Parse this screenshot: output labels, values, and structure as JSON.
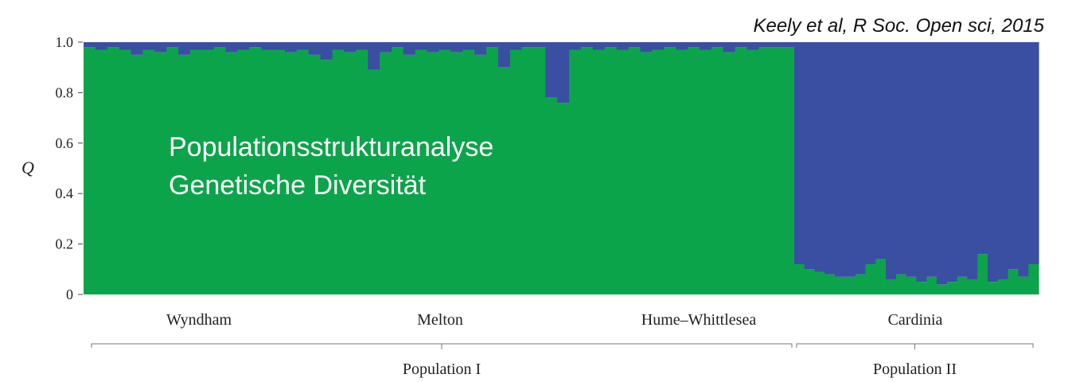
{
  "chart_data": {
    "type": "bar",
    "stacked": true,
    "citation": "Keely et al, R Soc. Open sci, 2015",
    "annotations": [
      "Populationsstrukturanalyse",
      "Genetische Diversität"
    ],
    "ylabel": "Q",
    "ylim": [
      0,
      1
    ],
    "yticks": [
      0,
      0.2,
      0.4,
      0.6,
      0.8,
      {
        "value": 1,
        "label": "1.0"
      }
    ],
    "groups": [
      "Wyndham",
      "Melton",
      "Hume–Whittlesea",
      "Cardinia"
    ],
    "populations": [
      "Population I",
      "Population II"
    ],
    "series": [
      {
        "color": "#0ca44a",
        "values": [
          0.98,
          0.97,
          0.98,
          0.97,
          0.95,
          0.97,
          0.96,
          0.98,
          0.95,
          0.97,
          0.97,
          0.98,
          0.96,
          0.97,
          0.98,
          0.97,
          0.97,
          0.96,
          0.97,
          0.95,
          0.93,
          0.97,
          0.96,
          0.97,
          0.89,
          0.96,
          0.98,
          0.95,
          0.97,
          0.96,
          0.97,
          0.96,
          0.97,
          0.95,
          0.98,
          0.9,
          0.97,
          0.98,
          0.98,
          0.78,
          0.76,
          0.97,
          0.98,
          0.97,
          0.98,
          0.97,
          0.98,
          0.96,
          0.97,
          0.98,
          0.97,
          0.98,
          0.97,
          0.98,
          0.96,
          0.98,
          0.97,
          0.98,
          0.98,
          0.98,
          0.12,
          0.1,
          0.09,
          0.08,
          0.07,
          0.07,
          0.08,
          0.12,
          0.14,
          0.06,
          0.08,
          0.07,
          0.05,
          0.07,
          0.04,
          0.05,
          0.07,
          0.06,
          0.16,
          0.05,
          0.06,
          0.1,
          0.07,
          0.12
        ]
      },
      {
        "color": "#3a4ea2",
        "values": [
          0.02,
          0.03,
          0.02,
          0.03,
          0.05,
          0.03,
          0.04,
          0.02,
          0.05,
          0.03,
          0.03,
          0.02,
          0.04,
          0.03,
          0.02,
          0.03,
          0.03,
          0.04,
          0.03,
          0.05,
          0.07,
          0.03,
          0.04,
          0.03,
          0.11,
          0.04,
          0.02,
          0.05,
          0.03,
          0.04,
          0.03,
          0.04,
          0.03,
          0.05,
          0.02,
          0.1,
          0.03,
          0.02,
          0.02,
          0.22,
          0.24,
          0.03,
          0.02,
          0.03,
          0.02,
          0.03,
          0.02,
          0.04,
          0.03,
          0.02,
          0.03,
          0.02,
          0.03,
          0.02,
          0.04,
          0.02,
          0.03,
          0.02,
          0.02,
          0.02,
          0.88,
          0.9,
          0.91,
          0.92,
          0.93,
          0.93,
          0.92,
          0.88,
          0.86,
          0.94,
          0.92,
          0.93,
          0.95,
          0.93,
          0.96,
          0.95,
          0.93,
          0.94,
          0.84,
          0.95,
          0.94,
          0.9,
          0.93,
          0.88
        ]
      }
    ]
  }
}
